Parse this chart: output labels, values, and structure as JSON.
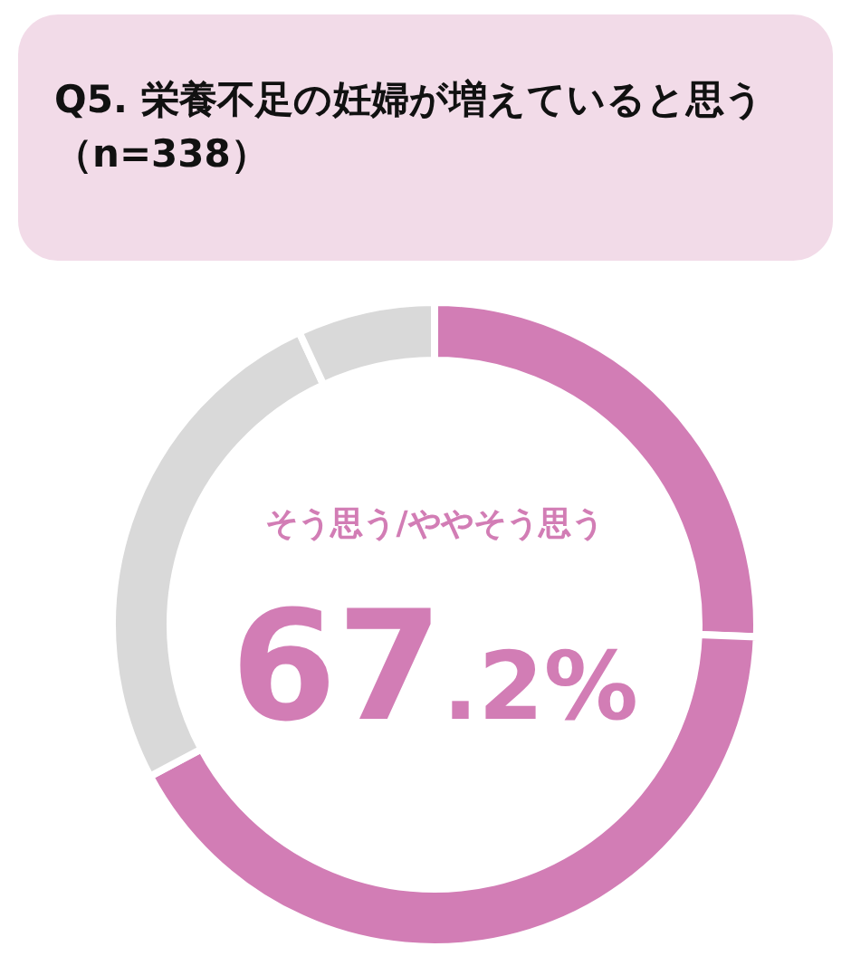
{
  "chart_data": {
    "type": "donut",
    "title": "Q5. 栄養不足の妊婦が増えていると思う（n=338）",
    "categories": [
      null,
      null,
      null,
      null
    ],
    "values": [
      25.6,
      41.6,
      25.9,
      6.9
    ],
    "colors": [
      "#d27db5",
      "#d27db5",
      "#d9d9d9",
      "#d9d9d9"
    ],
    "annotations": [
      "そう思う/ややそう思う",
      "67.2%"
    ]
  }
}
